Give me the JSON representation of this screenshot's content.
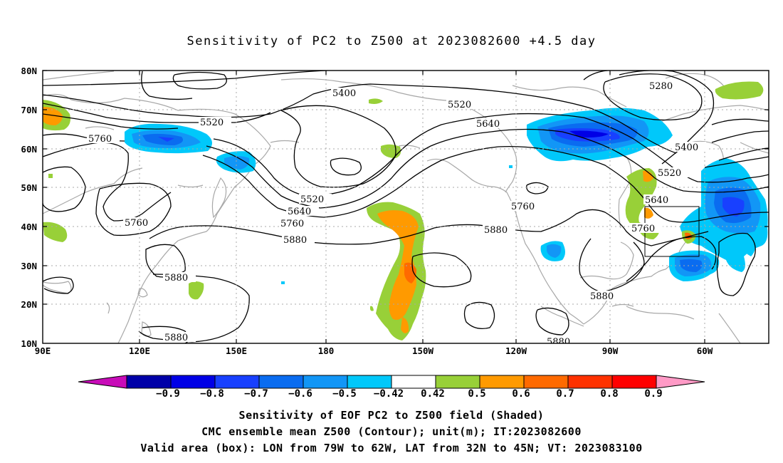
{
  "title": "Sensitivity of PC2 to Z500 at 2023082600 +4.5 day",
  "lat_labels": [
    "80N",
    "70N",
    "60N",
    "50N",
    "40N",
    "30N",
    "20N",
    "10N"
  ],
  "lon_labels": [
    "90E",
    "120E",
    "150E",
    "180",
    "150W",
    "120W",
    "90W",
    "60W"
  ],
  "contour_labels": {
    "c5400a": "5400",
    "c5520a": "5520",
    "c5640a": "5640",
    "c5280": "5280",
    "c5400b": "5400",
    "c5520b": "5520",
    "c5640b": "5640",
    "c5760b": "5760",
    "c5520c": "5520",
    "c5760a": "5760",
    "c5520d": "5520",
    "c5640c": "5640",
    "c5760c": "5760",
    "c5880a": "5880",
    "c5760d": "5760",
    "c5880b": "5880",
    "c5760e": "5760",
    "c5880c": "5880",
    "c5880d": "5880",
    "c5880e": "5880",
    "c5880f": "5880"
  },
  "colorbar": {
    "labels": [
      "-0.9",
      "-0.8",
      "-0.7",
      "-0.6",
      "-0.5",
      "-0.42",
      "0.42",
      "0.5",
      "0.6",
      "0.7",
      "0.8",
      "0.9"
    ],
    "colors": {
      "below": "#c80cb8",
      "bins": [
        "#0000a8",
        "#0000e6",
        "#1840ff",
        "#0a6cf0",
        "#1296f6",
        "#00c8fa",
        "#ffffff",
        "#98d038",
        "#ff9a00",
        "#ff6a00",
        "#ff3200",
        "#ff0000"
      ],
      "above": "#ff9ac6"
    }
  },
  "captions": {
    "line1": "Sensitivity of EOF PC2 to Z500 field (Shaded)",
    "line2": "CMC ensemble mean Z500 (Contour); unit(m); IT:2023082600",
    "line3": "Valid area (box): LON from 79W to 62W, LAT from 32N to 45N; VT: 2023083100"
  }
}
